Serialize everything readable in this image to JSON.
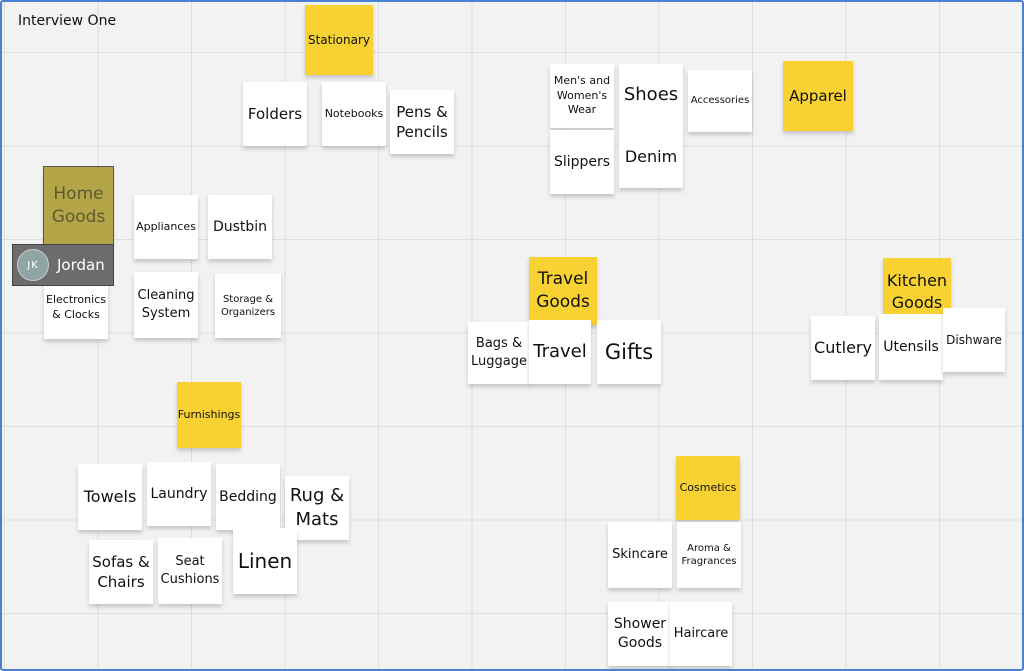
{
  "title": "Interview One",
  "cursor": {
    "initials": "JK",
    "name": "Jordan"
  },
  "notes": [
    {
      "text": "Stationary"
    },
    {
      "text": "Folders"
    },
    {
      "text": "Notebooks"
    },
    {
      "text": "Pens & Pencils"
    },
    {
      "text": "Men's and Women's Wear"
    },
    {
      "text": "Shoes"
    },
    {
      "text": "Accessories"
    },
    {
      "text": "Apparel"
    },
    {
      "text": "Slippers"
    },
    {
      "text": "Denim"
    },
    {
      "text": "Home Goods"
    },
    {
      "text": "Appliances"
    },
    {
      "text": "Dustbin"
    },
    {
      "text": "Electronics & Clocks"
    },
    {
      "text": "Cleaning System"
    },
    {
      "text": "Storage & Organizers"
    },
    {
      "text": "Travel Goods"
    },
    {
      "text": "Bags & Luggage"
    },
    {
      "text": "Travel"
    },
    {
      "text": "Gifts"
    },
    {
      "text": "Kitchen Goods"
    },
    {
      "text": "Cutlery"
    },
    {
      "text": "Utensils"
    },
    {
      "text": "Dishware"
    },
    {
      "text": "Furnishings"
    },
    {
      "text": "Towels"
    },
    {
      "text": "Laundry"
    },
    {
      "text": "Bedding"
    },
    {
      "text": "Rug & Mats"
    },
    {
      "text": "Sofas & Chairs"
    },
    {
      "text": "Seat Cushions"
    },
    {
      "text": "Linen"
    },
    {
      "text": "Cosmetics"
    },
    {
      "text": "Skincare"
    },
    {
      "text": "Aroma & Fragrances"
    },
    {
      "text": "Shower Goods"
    },
    {
      "text": "Haircare"
    }
  ]
}
